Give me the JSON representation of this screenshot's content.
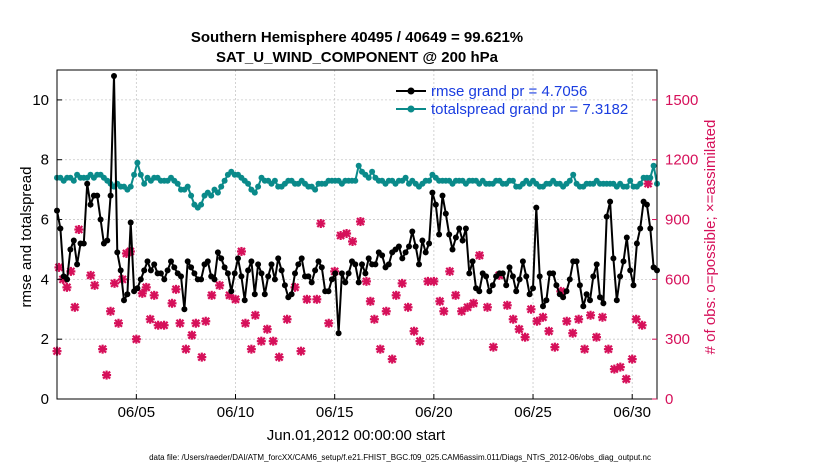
{
  "chart_data": {
    "type": "line",
    "title": "Southern Hemisphere 40495 / 40649 = 99.621%",
    "subtitle": "SAT_U_WIND_COMPONENT @ 200 hPa",
    "xlabel": "Jun.01,2012 00:00:00 start",
    "ylabel": "rmse and totalspread",
    "y2label": "# of obs: o=possible; ×=assimilated",
    "footer": "data file: /Users/raeder/DAI/ATM_forcXX/CAM6_setup/f.e21.FHIST_BGC.f09_025.CAM6assim.011/Diags_NTrS_2012-06/obs_diag_output.nc",
    "xlim": [
      1,
      31.25
    ],
    "ylim": [
      0,
      11
    ],
    "y2lim": [
      0,
      1650
    ],
    "xticks": [
      5,
      10,
      15,
      20,
      25,
      30
    ],
    "xtick_labels": [
      "06/05",
      "06/10",
      "06/15",
      "06/20",
      "06/25",
      "06/30"
    ],
    "yticks": [
      0,
      2,
      4,
      6,
      8,
      10
    ],
    "y2ticks": [
      0,
      300,
      600,
      900,
      1200,
      1500
    ],
    "grid": true,
    "legend_position": "top-right",
    "colors": {
      "rmse": "#000000",
      "totalspread": "#0a8a8a",
      "obs": "#d6105a",
      "legend_text": "#1a3de0",
      "y2axis": "#d6105a"
    },
    "series": [
      {
        "name": "rmse grand pr = 4.7056",
        "axis": "left",
        "color": "#000000",
        "values": [
          6.3,
          5.7,
          4.1,
          4.0,
          5.0,
          5.3,
          4.5,
          5.2,
          5.2,
          7.2,
          6.5,
          6.8,
          6.8,
          6.0,
          5.2,
          5.3,
          6.8,
          10.8,
          4.9,
          4.3,
          3.3,
          3.5,
          5.9,
          3.6,
          3.7,
          4.0,
          4.3,
          4.6,
          4.3,
          4.5,
          4.2,
          4.2,
          4.0,
          4.3,
          4.6,
          4.4,
          4.2,
          4.1,
          3.0,
          4.6,
          4.4,
          4.2,
          4.0,
          4.0,
          4.5,
          4.6,
          4.1,
          4.0,
          4.9,
          4.7,
          4.4,
          4.2,
          3.6,
          4.2,
          4.7,
          4.1,
          3.3,
          4.3,
          4.6,
          3.5,
          4.5,
          4.2,
          3.5,
          4.1,
          4.5,
          4.0,
          4.7,
          4.3,
          3.8,
          3.4,
          3.5,
          4.2,
          4.5,
          4.7,
          4.1,
          4.1,
          3.9,
          4.3,
          4.6,
          4.4,
          3.6,
          3.6,
          4.0,
          4.2,
          2.2,
          4.2,
          3.9,
          4.2,
          4.6,
          4.5,
          3.9,
          4.5,
          4.2,
          4.7,
          4.5,
          4.5,
          4.9,
          4.8,
          4.4,
          4.5,
          4.9,
          5.0,
          5.1,
          4.7,
          4.9,
          5.1,
          5.6,
          5.1,
          4.5,
          5.3,
          4.9,
          5.2,
          6.9,
          6.5,
          5.5,
          6.8,
          6.2,
          5.5,
          5.0,
          5.4,
          5.7,
          5.3,
          5.7,
          4.2,
          4.6,
          3.7,
          3.6,
          4.2,
          4.1,
          3.6,
          3.8,
          4.1,
          4.2,
          4.2,
          3.8,
          4.4,
          4.1,
          3.6,
          4.0,
          4.6,
          4.1,
          3.5,
          3.7,
          6.4,
          4.1,
          3.1,
          3.3,
          4.2,
          4.2,
          3.8,
          3.5,
          3.4,
          3.6,
          4.0,
          4.6,
          4.6,
          3.8,
          3.1,
          3.5,
          3.3,
          4.1,
          4.5,
          3.4,
          3.2,
          6.1,
          6.6,
          4.7,
          3.3,
          4.1,
          4.6,
          5.4,
          4.3,
          3.8,
          5.2,
          5.7,
          6.6,
          6.5,
          5.7,
          4.4,
          4.3
        ]
      },
      {
        "name": "totalspread grand pr = 7.3182",
        "axis": "left",
        "color": "#0a8a8a",
        "values": [
          7.4,
          7.4,
          7.3,
          7.4,
          7.4,
          7.3,
          7.5,
          7.4,
          7.4,
          7.4,
          7.5,
          7.4,
          7.5,
          7.5,
          7.4,
          7.3,
          7.2,
          7.1,
          7.2,
          7.1,
          7.1,
          7.0,
          7.1,
          7.5,
          7.9,
          7.5,
          7.2,
          7.4,
          7.3,
          7.4,
          7.4,
          7.3,
          7.3,
          7.3,
          7.4,
          7.3,
          7.2,
          7.0,
          7.0,
          7.1,
          6.8,
          6.5,
          6.4,
          6.5,
          6.8,
          6.9,
          6.8,
          7.0,
          6.9,
          7.1,
          7.3,
          7.5,
          7.6,
          7.5,
          7.5,
          7.4,
          7.3,
          7.2,
          7.0,
          6.9,
          7.1,
          7.4,
          7.3,
          7.3,
          7.2,
          7.3,
          7.1,
          7.1,
          7.2,
          7.3,
          7.3,
          7.2,
          7.2,
          7.3,
          7.2,
          7.1,
          7.1,
          7.0,
          7.2,
          7.2,
          7.2,
          7.3,
          7.3,
          7.3,
          7.3,
          7.2,
          7.3,
          7.3,
          7.3,
          7.3,
          7.8,
          7.6,
          7.5,
          7.4,
          7.6,
          7.4,
          7.3,
          7.3,
          7.2,
          7.3,
          7.3,
          7.2,
          7.3,
          7.3,
          7.4,
          7.2,
          7.3,
          7.2,
          7.1,
          7.2,
          7.3,
          7.3,
          7.5,
          7.4,
          7.3,
          7.3,
          7.3,
          7.3,
          7.2,
          7.3,
          7.3,
          7.3,
          7.2,
          7.3,
          7.3,
          7.3,
          7.2,
          7.3,
          7.2,
          7.2,
          7.2,
          7.3,
          7.3,
          7.2,
          7.2,
          7.3,
          7.3,
          7.1,
          7.1,
          7.2,
          7.3,
          7.2,
          7.3,
          7.2,
          7.1,
          7.1,
          7.2,
          7.2,
          7.3,
          7.2,
          7.2,
          7.1,
          7.2,
          7.3,
          7.5,
          7.2,
          7.1,
          7.1,
          7.2,
          7.2,
          7.2,
          7.3,
          7.2,
          7.2,
          7.2,
          7.2,
          7.2,
          7.1,
          7.2,
          7.1,
          7.1,
          7.3,
          7.1,
          7.1,
          7.2,
          7.4,
          7.4,
          7.4,
          7.8,
          7.2
        ]
      },
      {
        "name": "assimilated observations",
        "axis": "right",
        "type": "scatter",
        "color": "#d6105a",
        "x": [
          1.0,
          1.1,
          1.3,
          1.5,
          1.7,
          1.9,
          2.1,
          2.7,
          2.9,
          3.3,
          3.5,
          3.7,
          3.9,
          4.1,
          4.3,
          4.5,
          4.7,
          5.0,
          5.3,
          5.5,
          5.7,
          5.9,
          6.1,
          6.4,
          6.8,
          7.0,
          7.2,
          7.5,
          7.8,
          8.0,
          8.3,
          8.5,
          8.8,
          9.2,
          9.7,
          10.0,
          10.3,
          10.5,
          10.8,
          11.0,
          11.3,
          11.6,
          11.9,
          12.2,
          12.6,
          13.0,
          13.3,
          13.6,
          14.1,
          14.3,
          14.7,
          15.0,
          15.3,
          15.6,
          15.9,
          16.3,
          16.6,
          16.8,
          17.0,
          17.3,
          17.6,
          17.9,
          18.1,
          18.4,
          18.7,
          19.0,
          19.3,
          19.7,
          20.0,
          20.3,
          20.5,
          20.8,
          21.1,
          21.4,
          21.7,
          22.0,
          22.3,
          22.7,
          23.0,
          23.3,
          23.7,
          24.0,
          24.3,
          24.6,
          24.9,
          25.2,
          25.5,
          25.8,
          26.1,
          26.4,
          26.7,
          27.0,
          27.3,
          27.6,
          27.9,
          28.2,
          28.5,
          28.8,
          29.1,
          29.4,
          29.7,
          30.0,
          30.2,
          30.5,
          30.8
        ],
        "values": [
          240,
          660,
          600,
          560,
          640,
          460,
          850,
          620,
          570,
          250,
          120,
          440,
          580,
          380,
          600,
          730,
          740,
          300,
          530,
          560,
          400,
          520,
          370,
          370,
          480,
          550,
          380,
          250,
          320,
          380,
          210,
          390,
          520,
          570,
          520,
          500,
          740,
          380,
          250,
          420,
          290,
          350,
          290,
          210,
          400,
          560,
          240,
          500,
          500,
          880,
          380,
          640,
          820,
          830,
          790,
          890,
          590,
          490,
          400,
          250,
          440,
          200,
          520,
          580,
          460,
          340,
          290,
          590,
          590,
          490,
          440,
          640,
          520,
          440,
          460,
          480,
          720,
          460,
          260,
          620,
          470,
          400,
          350,
          310,
          450,
          390,
          410,
          340,
          260,
          540,
          390,
          330,
          400,
          250,
          420,
          310,
          410,
          250,
          150,
          160,
          100,
          200,
          400,
          370,
          1080
        ]
      }
    ]
  },
  "markers_right": {
    "obs_marker": "✖"
  }
}
